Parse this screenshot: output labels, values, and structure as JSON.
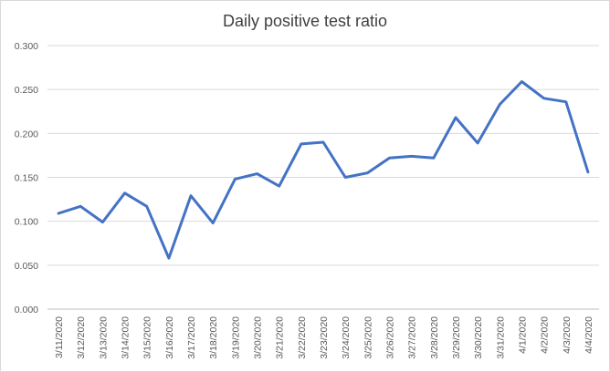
{
  "chart_data": {
    "type": "line",
    "title": "Daily positive test ratio",
    "categories": [
      "3/11/2020",
      "3/12/2020",
      "3/13/2020",
      "3/14/2020",
      "3/15/2020",
      "3/16/2020",
      "3/17/2020",
      "3/18/2020",
      "3/19/2020",
      "3/20/2020",
      "3/21/2020",
      "3/22/2020",
      "3/23/2020",
      "3/24/2020",
      "3/25/2020",
      "3/26/2020",
      "3/27/2020",
      "3/28/2020",
      "3/29/2020",
      "3/30/2020",
      "3/31/2020",
      "4/1/2020",
      "4/2/2020",
      "4/3/2020",
      "4/4/2020"
    ],
    "values": [
      0.109,
      0.117,
      0.099,
      0.132,
      0.117,
      0.058,
      0.129,
      0.098,
      0.148,
      0.154,
      0.14,
      0.188,
      0.19,
      0.15,
      0.155,
      0.172,
      0.174,
      0.172,
      0.218,
      0.189,
      0.233,
      0.259,
      0.24,
      0.236,
      0.156
    ],
    "ylim": [
      0,
      0.3
    ],
    "yticks": [
      "0.000",
      "0.050",
      "0.100",
      "0.150",
      "0.200",
      "0.250",
      "0.300"
    ],
    "xlabel": "",
    "ylabel": "",
    "grid": true,
    "line_color": "#4472c4"
  }
}
